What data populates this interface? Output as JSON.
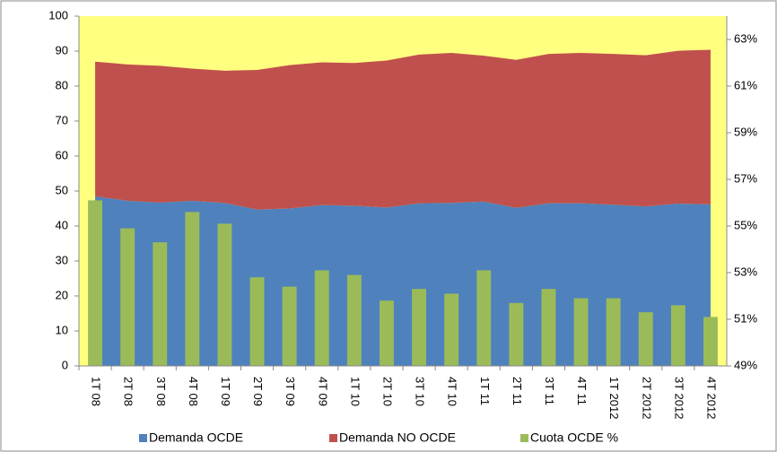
{
  "chart_data": {
    "type": "stacked-area-bar",
    "categories": [
      "1T 08",
      "2T 08",
      "3T 08",
      "4T 08",
      "1T 09",
      "2T 09",
      "3T 09",
      "4T 09",
      "1T 10",
      "2T 10",
      "3T 10",
      "4T 10",
      "1T 11",
      "2T 11",
      "3T 11",
      "4T 11",
      "1T 2012",
      "2T 2012",
      "3T 2012",
      "4T 2012"
    ],
    "series": [
      {
        "name": "Demanda OCDE",
        "color": "#4f81bd",
        "kind": "area",
        "values": [
          48.5,
          47.2,
          46.7,
          47.2,
          46.6,
          44.7,
          45,
          46,
          45.8,
          45.3,
          46.5,
          46.6,
          47,
          45.2,
          46.5,
          46.5,
          46.1,
          45.6,
          46.4,
          46.2
        ]
      },
      {
        "name": "Demanda NO OCDE",
        "color": "#c0504d",
        "kind": "area",
        "values": [
          38.5,
          39,
          39.1,
          37.8,
          37.8,
          39.9,
          41,
          40.8,
          40.8,
          42,
          42.5,
          42.9,
          41.7,
          42.3,
          42.7,
          43,
          43.1,
          43.2,
          43.7,
          44.2
        ]
      },
      {
        "name": "Cuota OCDE %",
        "color": "#9bbb59",
        "kind": "bar",
        "axis": "y2",
        "values": [
          56.1,
          54.9,
          54.3,
          55.6,
          55.1,
          52.8,
          52.4,
          53.1,
          52.9,
          51.8,
          52.3,
          52.1,
          53.1,
          51.7,
          52.3,
          51.9,
          51.9,
          51.3,
          51.6,
          51.1
        ]
      }
    ],
    "ylim": [
      0,
      100
    ],
    "yticks": [
      0,
      10,
      20,
      30,
      40,
      50,
      60,
      70,
      80,
      90,
      100
    ],
    "y2lim": [
      49,
      64
    ],
    "y2ticks": [
      {
        "value": 49,
        "label": "49%"
      },
      {
        "value": 51,
        "label": "51%"
      },
      {
        "value": 53,
        "label": "53%"
      },
      {
        "value": 55,
        "label": "55%"
      },
      {
        "value": 57,
        "label": "57%"
      },
      {
        "value": 59,
        "label": "59%"
      },
      {
        "value": 61,
        "label": "61%"
      },
      {
        "value": 63,
        "label": "63%"
      }
    ],
    "plot_background": "#ffff80"
  }
}
